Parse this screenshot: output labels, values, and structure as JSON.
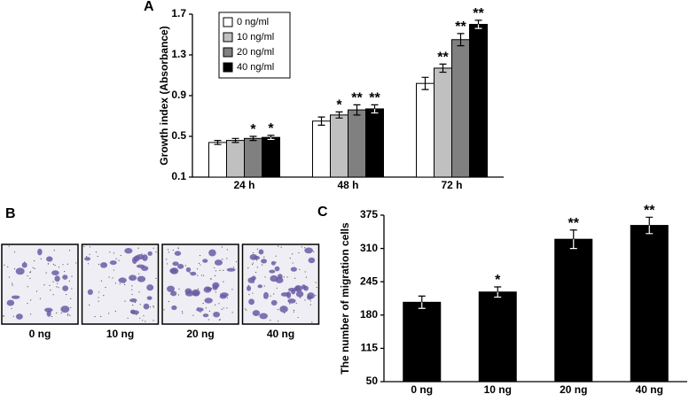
{
  "chart_data": [
    {
      "type": "bar",
      "panel_label": "A",
      "y_label": "Growth index (Absorbance)",
      "categories": [
        "24 h",
        "48 h",
        "72 h"
      ],
      "ylim": [
        0.1,
        1.7
      ],
      "yticks": [
        0.1,
        0.5,
        0.9,
        1.3,
        1.7
      ],
      "legend": "upper left",
      "series": [
        {
          "name": "0 ng/ml",
          "color": "#ffffff",
          "values": [
            0.44,
            0.65,
            1.02
          ],
          "errors": [
            0.02,
            0.04,
            0.06
          ],
          "significance": [
            null,
            null,
            null
          ]
        },
        {
          "name": "10 ng/ml",
          "color": "#c0c0c0",
          "values": [
            0.46,
            0.71,
            1.17
          ],
          "errors": [
            0.02,
            0.03,
            0.04
          ],
          "significance": [
            null,
            "*",
            "**"
          ]
        },
        {
          "name": "20 ng/ml",
          "color": "#808080",
          "values": [
            0.48,
            0.76,
            1.45
          ],
          "errors": [
            0.02,
            0.05,
            0.06
          ],
          "significance": [
            "*",
            "**",
            "**"
          ]
        },
        {
          "name": "40 ng/ml",
          "color": "#000000",
          "values": [
            0.49,
            0.77,
            1.6
          ],
          "errors": [
            0.02,
            0.04,
            0.04
          ],
          "significance": [
            "*",
            "**",
            "**"
          ]
        }
      ]
    },
    {
      "type": "bar",
      "panel_label": "C",
      "y_label": "The number of migration cells",
      "categories": [
        "0 ng",
        "10 ng",
        "20 ng",
        "40 ng"
      ],
      "ylim": [
        50,
        375
      ],
      "yticks": [
        50,
        115,
        180,
        245,
        310,
        375
      ],
      "series": [
        {
          "color": "#000000",
          "values": [
            205,
            225,
            328,
            355
          ],
          "errors": [
            12,
            10,
            18,
            16
          ],
          "significance": [
            null,
            "*",
            "**",
            "**"
          ]
        }
      ]
    }
  ],
  "panel_b": {
    "label": "B",
    "images": [
      "0 ng",
      "10 ng",
      "20 ng",
      "40 ng"
    ]
  }
}
